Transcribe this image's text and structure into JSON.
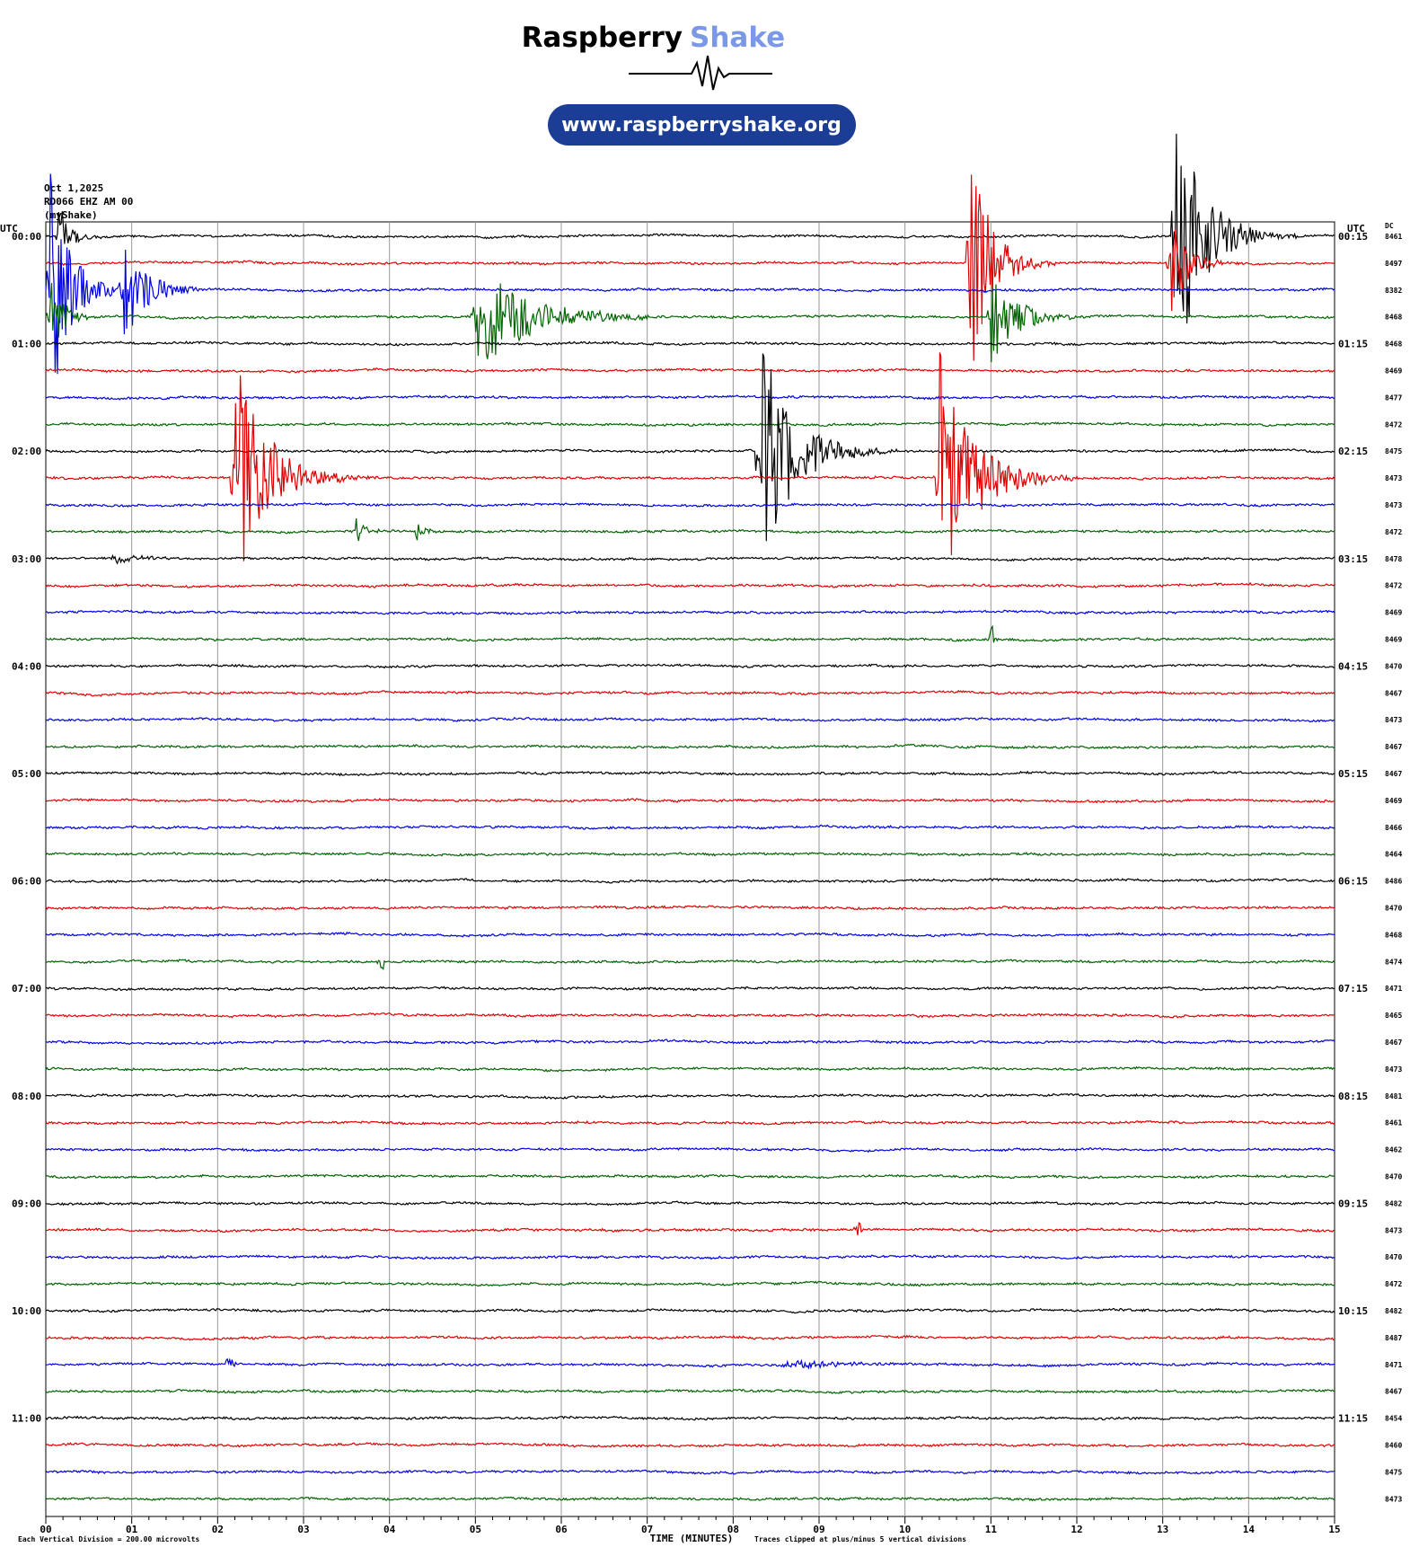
{
  "header": {
    "title_main": "Raspberry",
    "title_accent": "Shake",
    "url": "www.raspberryshake.org"
  },
  "plot": {
    "date": "Oct 1,2025",
    "station": "RD066 EHZ AM 00",
    "network": "(myShake)",
    "utc_left": "UTC",
    "utc_right": "UTC",
    "dc_label": "DC",
    "left_labels": [
      "00:00",
      "01:00",
      "02:00",
      "03:00",
      "04:00",
      "05:00",
      "06:00",
      "07:00",
      "08:00",
      "09:00",
      "10:00",
      "11:00"
    ],
    "right_labels": [
      "00:15",
      "01:15",
      "02:15",
      "03:15",
      "04:15",
      "05:15",
      "06:15",
      "07:15",
      "08:15",
      "09:15",
      "10:15",
      "11:15"
    ],
    "dc_values": [
      8461,
      8497,
      8382,
      8468,
      8468,
      8469,
      8477,
      8472,
      8475,
      8473,
      8473,
      8472,
      8478,
      8472,
      8469,
      8469,
      8470,
      8467,
      8473,
      8467,
      8467,
      8469,
      8466,
      8464,
      8486,
      8470,
      8468,
      8474,
      8471,
      8465,
      8467,
      8473,
      8481,
      8461,
      8462,
      8470,
      8482,
      8473,
      8470,
      8472,
      8482,
      8487,
      8471,
      8467,
      8454,
      8460,
      8475,
      8473
    ],
    "trace_colors": [
      "#000000",
      "#e00000",
      "#0000e0",
      "#006400"
    ],
    "x_ticks": [
      "00",
      "01",
      "02",
      "03",
      "04",
      "05",
      "06",
      "07",
      "08",
      "09",
      "10",
      "11",
      "12",
      "13",
      "14",
      "15"
    ],
    "x_label": "TIME (MINUTES)",
    "footer_left": "Each Vertical Division =  200.00 microvolts",
    "footer_right": "Traces clipped at plus/minus 5 vertical divisions"
  }
}
